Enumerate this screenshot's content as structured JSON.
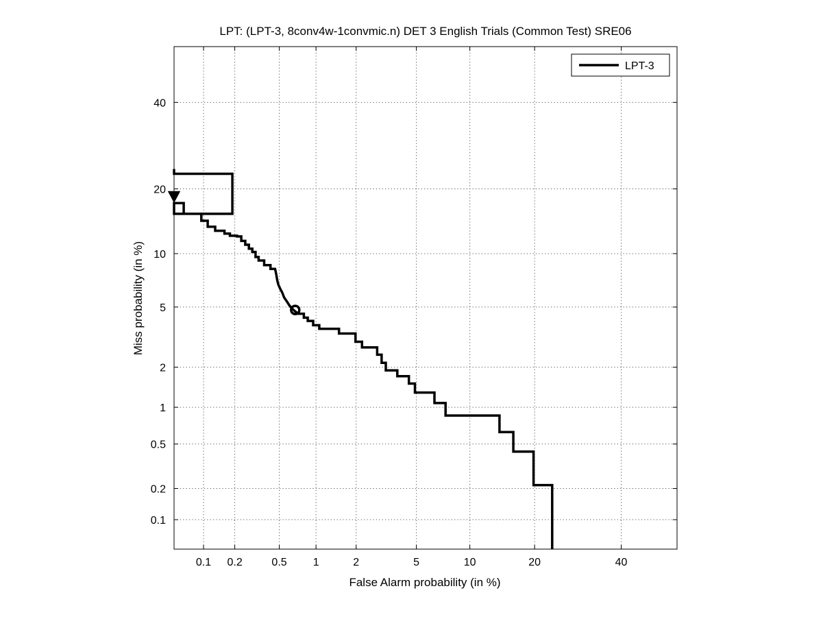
{
  "chart_data": {
    "type": "line",
    "title": "LPT: (LPT-3, 8conv4w-1convmic.n) DET 3 English Trials (Common Test) SRE06",
    "xlabel": "False Alarm probability (in %)",
    "ylabel": "Miss probability (in %)",
    "x_scale": "normal-deviate (probit)",
    "y_scale": "normal-deviate (probit)",
    "xlim": [
      0.05,
      55
    ],
    "ylim": [
      0.05,
      55
    ],
    "x_ticks": [
      0.1,
      0.2,
      0.5,
      1,
      2,
      5,
      10,
      20,
      40
    ],
    "x_tick_labels": [
      "0.1",
      "0.2",
      "0.5",
      "1",
      "2",
      "5",
      "10",
      "20",
      "40"
    ],
    "y_ticks": [
      0.1,
      0.2,
      0.5,
      1,
      2,
      5,
      10,
      20,
      40
    ],
    "y_tick_labels": [
      "0.1",
      "0.2",
      "0.5",
      "1",
      "2",
      "5",
      "10",
      "20",
      "40"
    ],
    "grid": true,
    "legend_position": "top-right",
    "series": [
      {
        "name": "LPT-3",
        "color": "#000000",
        "points": [
          [
            0.05,
            24
          ],
          [
            0.05,
            23
          ],
          [
            0.19,
            23
          ],
          [
            0.19,
            15.6
          ],
          [
            0.05,
            15.6
          ],
          [
            0.05,
            17.4
          ],
          [
            0.063,
            17.4
          ],
          [
            0.063,
            15.6
          ],
          [
            0.095,
            15.6
          ],
          [
            0.095,
            14.5
          ],
          [
            0.11,
            14.5
          ],
          [
            0.11,
            13.6
          ],
          [
            0.13,
            13.6
          ],
          [
            0.13,
            13.0
          ],
          [
            0.16,
            13.0
          ],
          [
            0.16,
            12.6
          ],
          [
            0.18,
            12.6
          ],
          [
            0.18,
            12.3
          ],
          [
            0.21,
            12.3
          ],
          [
            0.21,
            12.2
          ],
          [
            0.23,
            12.2
          ],
          [
            0.23,
            11.6
          ],
          [
            0.25,
            11.6
          ],
          [
            0.25,
            11.1
          ],
          [
            0.27,
            11.1
          ],
          [
            0.27,
            10.6
          ],
          [
            0.29,
            10.6
          ],
          [
            0.29,
            10.2
          ],
          [
            0.31,
            10.2
          ],
          [
            0.31,
            9.6
          ],
          [
            0.33,
            9.6
          ],
          [
            0.33,
            9.2
          ],
          [
            0.37,
            9.2
          ],
          [
            0.37,
            8.7
          ],
          [
            0.42,
            8.7
          ],
          [
            0.42,
            8.3
          ],
          [
            0.46,
            8.3
          ],
          [
            0.47,
            7.8
          ],
          [
            0.48,
            7.2
          ],
          [
            0.49,
            6.8
          ],
          [
            0.51,
            6.4
          ],
          [
            0.53,
            6.1
          ],
          [
            0.55,
            5.7
          ],
          [
            0.58,
            5.4
          ],
          [
            0.61,
            5.1
          ],
          [
            0.64,
            4.9
          ],
          [
            0.68,
            4.7
          ],
          [
            0.72,
            4.55
          ],
          [
            0.8,
            4.55
          ],
          [
            0.8,
            4.3
          ],
          [
            0.86,
            4.3
          ],
          [
            0.86,
            4.1
          ],
          [
            0.95,
            4.1
          ],
          [
            0.95,
            3.85
          ],
          [
            1.06,
            3.85
          ],
          [
            1.06,
            3.65
          ],
          [
            1.5,
            3.65
          ],
          [
            1.5,
            3.4
          ],
          [
            1.98,
            3.4
          ],
          [
            1.98,
            3.0
          ],
          [
            2.2,
            3.0
          ],
          [
            2.2,
            2.75
          ],
          [
            2.8,
            2.75
          ],
          [
            2.8,
            2.45
          ],
          [
            3.0,
            2.45
          ],
          [
            3.0,
            2.15
          ],
          [
            3.2,
            2.15
          ],
          [
            3.2,
            1.9
          ],
          [
            3.8,
            1.9
          ],
          [
            3.8,
            1.72
          ],
          [
            4.5,
            1.72
          ],
          [
            4.5,
            1.52
          ],
          [
            4.9,
            1.52
          ],
          [
            4.9,
            1.3
          ],
          [
            6.4,
            1.3
          ],
          [
            6.4,
            1.08
          ],
          [
            7.4,
            1.08
          ],
          [
            7.4,
            0.86
          ],
          [
            14.0,
            0.86
          ],
          [
            14.0,
            0.63
          ],
          [
            16.2,
            0.63
          ],
          [
            16.2,
            0.43
          ],
          [
            19.8,
            0.43
          ],
          [
            19.8,
            0.215
          ],
          [
            23.5,
            0.215
          ],
          [
            23.5,
            0.05
          ]
        ]
      }
    ],
    "markers": [
      {
        "shape": "circle",
        "x": 0.68,
        "y": 4.8
      },
      {
        "shape": "triangle-down",
        "x": 0.05,
        "y": 18.6
      }
    ]
  }
}
